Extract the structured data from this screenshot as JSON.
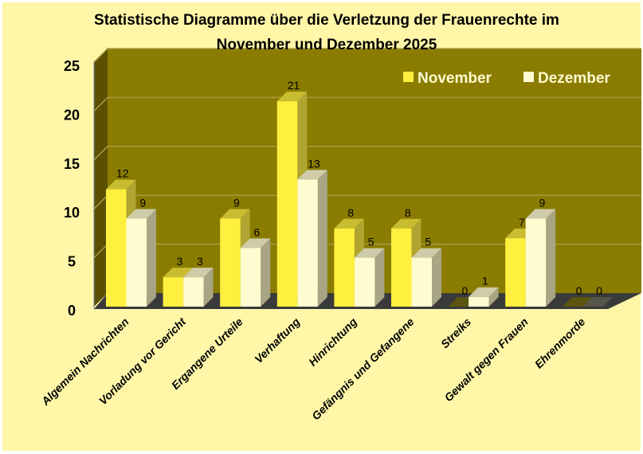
{
  "chart_data": {
    "type": "bar",
    "title": "Statistische Diagramme über die Verletzung der Frauenrechte im November und Dezember 2025",
    "title_lines": [
      "Statistische Diagramme über die Verletzung der Frauenrechte im",
      "November und Dezember 2025"
    ],
    "categories": [
      "Algemein Nachrichten",
      "Vorladung vor Gericht",
      "Ergangene Urteile",
      "Verhaftung",
      "Hinrichtung",
      "Gefängnis und Gefangene",
      "Streiks",
      "Gewalt gegen Frauen",
      "Ehrenmorde"
    ],
    "series": [
      {
        "name": "November",
        "values": [
          12,
          3,
          9,
          21,
          8,
          8,
          0,
          7,
          0
        ],
        "color": "#FFEF3F"
      },
      {
        "name": "Dezember",
        "values": [
          9,
          3,
          6,
          13,
          5,
          5,
          1,
          9,
          0
        ],
        "color": "#FFFBD0"
      }
    ],
    "ylim": [
      0,
      25
    ],
    "yticks": [
      0,
      5,
      10,
      15,
      20,
      25
    ],
    "grid": true,
    "legend": "top-right",
    "xlabel": "",
    "ylabel": "",
    "colors": {
      "background": "#FFF6A8",
      "wall": "#8A7C00",
      "side_wall": "#5A5000",
      "floor": "#3A3A3A"
    }
  }
}
